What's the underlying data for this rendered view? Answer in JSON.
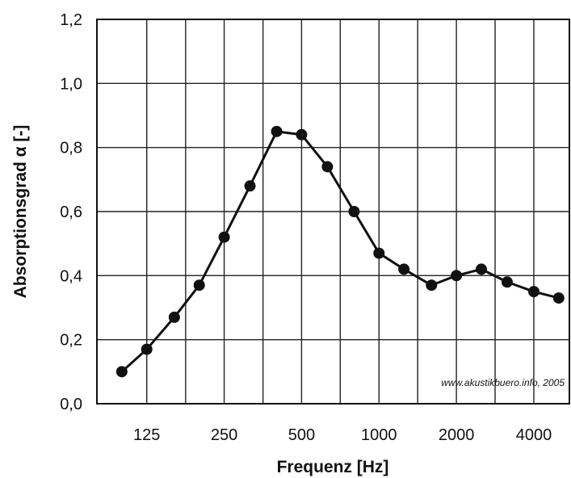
{
  "chart_data": {
    "type": "line",
    "xlabel": "Frequenz [Hz]",
    "ylabel": "Absorptionsgrad α [-]",
    "x_scale": "log",
    "ylim": [
      0,
      1.2
    ],
    "xlim": [
      80,
      5500
    ],
    "grid": true,
    "x_ticks": [
      {
        "value": 125,
        "label": "125"
      },
      {
        "value": 250,
        "label": "250"
      },
      {
        "value": 500,
        "label": "500"
      },
      {
        "value": 1000,
        "label": "1000"
      },
      {
        "value": 2000,
        "label": "2000"
      },
      {
        "value": 4000,
        "label": "4000"
      }
    ],
    "y_ticks": [
      {
        "value": 0.0,
        "label": "0,0"
      },
      {
        "value": 0.2,
        "label": "0,2"
      },
      {
        "value": 0.4,
        "label": "0,4"
      },
      {
        "value": 0.6,
        "label": "0,6"
      },
      {
        "value": 0.8,
        "label": "0,8"
      },
      {
        "value": 1.0,
        "label": "1,0"
      },
      {
        "value": 1.2,
        "label": "1,2"
      }
    ],
    "series": [
      {
        "color": "#111111",
        "x": [
          100,
          125,
          160,
          200,
          250,
          315,
          400,
          500,
          630,
          800,
          1000,
          1250,
          1600,
          2000,
          2500,
          3150,
          4000,
          5000
        ],
        "y": [
          0.1,
          0.17,
          0.27,
          0.37,
          0.52,
          0.68,
          0.85,
          0.84,
          0.74,
          0.6,
          0.47,
          0.42,
          0.37,
          0.4,
          0.42,
          0.38,
          0.35,
          0.33
        ]
      }
    ],
    "annotation": "www.akustikbuero.info, 2005"
  }
}
